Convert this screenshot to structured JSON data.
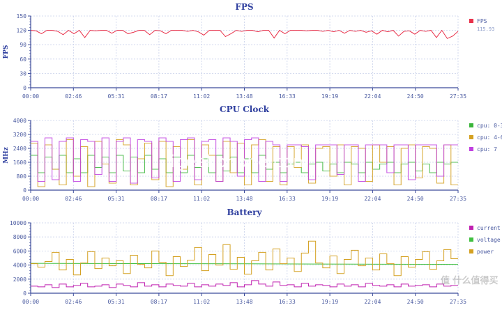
{
  "watermark": "igeekphone.com",
  "watermark2": "值 什么值得买",
  "chart_data": [
    {
      "type": "line",
      "title": "FPS",
      "ylabel": "FPS",
      "xlabel": "",
      "ylim": [
        0,
        150
      ],
      "yticks": [
        "0",
        "30",
        "60",
        "90",
        "120",
        "150"
      ],
      "xticks": [
        "00:00",
        "02:46",
        "05:31",
        "08:17",
        "11:02",
        "13:48",
        "16:33",
        "19:19",
        "22:04",
        "24:50",
        "27:35"
      ],
      "legend_position": "right",
      "legend_value": "115.93",
      "series": [
        {
          "name": "FPS",
          "color": "#e8314a",
          "values": [
            120,
            119,
            113,
            120,
            120,
            118,
            111,
            120,
            113,
            120,
            105,
            120,
            119,
            120,
            120,
            114,
            120,
            120,
            113,
            116,
            120,
            120,
            111,
            120,
            119,
            113,
            120,
            120,
            120,
            118,
            120,
            117,
            110,
            120,
            120,
            120,
            107,
            113,
            120,
            118,
            120,
            120,
            117,
            120,
            120,
            104,
            120,
            113,
            120,
            120,
            120,
            119,
            120,
            120,
            118,
            120,
            117,
            120,
            114,
            120,
            118,
            120,
            116,
            119,
            112,
            120,
            117,
            120,
            108,
            118,
            119,
            112,
            120,
            118,
            120,
            105,
            120,
            103,
            108,
            118
          ]
        }
      ]
    },
    {
      "type": "line",
      "title": "CPU Clock",
      "ylabel": "MHz",
      "xlabel": "",
      "ylim": [
        0,
        4000
      ],
      "yticks": [
        "0",
        "800",
        "1600",
        "2400",
        "3200",
        "4000"
      ],
      "xticks": [
        "00:00",
        "02:46",
        "05:31",
        "08:17",
        "11:02",
        "13:48",
        "16:33",
        "19:19",
        "22:04",
        "24:50",
        "27:35"
      ],
      "legend_position": "right",
      "series": [
        {
          "name": "cpu: 0-3",
          "color": "#3ab53a",
          "values": [
            2000,
            1000,
            1900,
            1200,
            2000,
            1000,
            1800,
            1000,
            2000,
            1300,
            1900,
            1000,
            2000,
            1100,
            1900,
            1000,
            2000,
            1200,
            1800,
            1000,
            1900,
            1000,
            2000,
            1300,
            1800,
            1000,
            2000,
            1100,
            1900,
            1000,
            1800,
            1000,
            2000,
            1200,
            1600,
            1000,
            1500,
            1600,
            1000,
            1500,
            1600,
            1100,
            1500,
            1000,
            1600,
            1500,
            1000,
            1600,
            1200,
            1500,
            1600,
            1000,
            1500,
            1600,
            1100,
            1500,
            1000,
            1600,
            1500,
            1600
          ]
        },
        {
          "name": "cpu: 4-6",
          "color": "#d4a020",
          "values": [
            2700,
            200,
            2600,
            1200,
            300,
            2900,
            800,
            2500,
            200,
            2800,
            1500,
            400,
            2900,
            2600,
            300,
            1800,
            2700,
            600,
            2800,
            200,
            2500,
            1200,
            2900,
            300,
            2600,
            2000,
            500,
            2800,
            1000,
            2700,
            300,
            2600,
            2900,
            500,
            2500,
            300,
            2500,
            1300,
            2600,
            400,
            2400,
            2500,
            800,
            2600,
            300,
            2500,
            2400,
            500,
            2600,
            1600,
            2500,
            300,
            2400,
            2600,
            700,
            2500,
            2400,
            400,
            2600,
            300
          ]
        },
        {
          "name": "cpu: 7",
          "color": "#c040e0",
          "values": [
            2800,
            500,
            3000,
            600,
            2800,
            3000,
            500,
            2900,
            2800,
            900,
            3000,
            500,
            2800,
            3000,
            400,
            2900,
            2800,
            700,
            3000,
            2800,
            500,
            2900,
            3000,
            600,
            2800,
            2900,
            500,
            3000,
            2800,
            800,
            2900,
            3000,
            500,
            2800,
            2600,
            500,
            2600,
            2600,
            2500,
            600,
            2600,
            2600,
            2600,
            900,
            2600,
            2600,
            500,
            2600,
            2600,
            2600,
            1000,
            2600,
            2600,
            600,
            2600,
            2600,
            2600,
            800,
            2600,
            2600
          ]
        }
      ]
    },
    {
      "type": "line",
      "title": "Battery",
      "ylabel": "",
      "xlabel": "",
      "ylim": [
        0,
        10000
      ],
      "yticks": [
        "0",
        "2000",
        "4000",
        "6000",
        "8000",
        "10000"
      ],
      "xticks": [
        "00:00",
        "02:46",
        "05:31",
        "08:17",
        "11:02",
        "13:48",
        "16:33",
        "19:19",
        "22:04",
        "24:50",
        "27:35"
      ],
      "legend_position": "right",
      "series": [
        {
          "name": "current",
          "color": "#c020b0",
          "values": [
            1000,
            900,
            1200,
            800,
            1300,
            900,
            1100,
            1400,
            900,
            1000,
            1200,
            800,
            1300,
            1100,
            900,
            1500,
            1000,
            1200,
            900,
            1300,
            1100,
            1000,
            1400,
            900,
            1200,
            1000,
            1300,
            1100,
            1500,
            900,
            1200,
            1800,
            1300,
            1000,
            1600,
            1100,
            1200,
            900,
            1400,
            1000,
            1200,
            1100,
            900,
            1300,
            1000,
            1200,
            900,
            1400,
            1100,
            1000,
            1200,
            900,
            1300,
            1000,
            1100,
            1200,
            900,
            1300,
            1000,
            1100
          ]
        },
        {
          "name": "voltage",
          "color": "#40c040",
          "values": [
            4250,
            4220,
            4200,
            4180,
            4150,
            4120,
            4100
          ]
        },
        {
          "name": "power",
          "color": "#d4a020",
          "values": [
            4200,
            3700,
            4500,
            5800,
            3300,
            4800,
            2600,
            4300,
            5900,
            3500,
            5000,
            3900,
            4600,
            2800,
            5400,
            4100,
            3600,
            6000,
            4400,
            2500,
            5200,
            3800,
            4700,
            6500,
            3200,
            5500,
            4000,
            6900,
            3400,
            5100,
            2700,
            4600,
            5800,
            3300,
            6300,
            4200,
            5000,
            3100,
            5700,
            7400,
            4300,
            3600,
            5300,
            2800,
            4800,
            6100,
            3900,
            5000,
            3300,
            5600,
            4200,
            2500,
            5200,
            3700,
            4800,
            5900,
            3400,
            4600,
            6200,
            4900
          ]
        }
      ]
    }
  ]
}
